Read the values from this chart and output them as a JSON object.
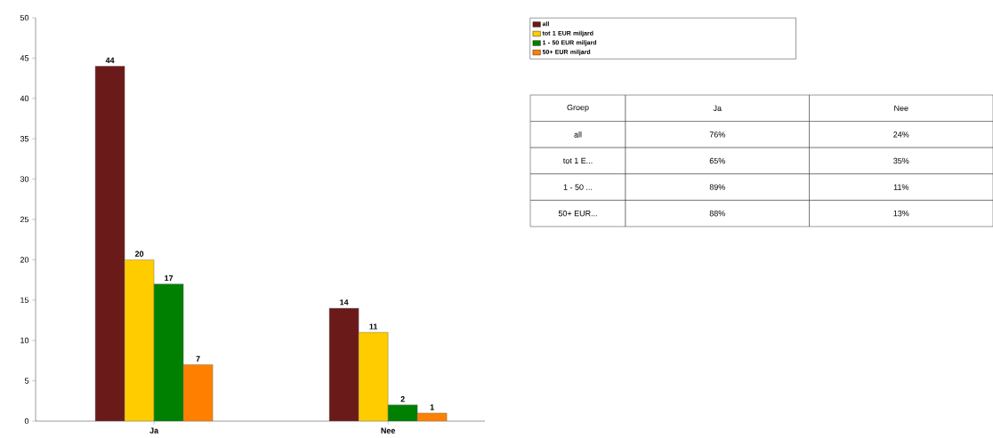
{
  "chart_data": [
    {
      "type": "bar",
      "categories": [
        "Ja",
        "Nee"
      ],
      "series": [
        {
          "name": "all",
          "color": "#6b1a1a",
          "values": [
            44,
            14
          ]
        },
        {
          "name": "tot 1 EUR miljard",
          "color": "#ffcc00",
          "values": [
            20,
            11
          ]
        },
        {
          "name": "1 - 50 EUR miljard",
          "color": "#008000",
          "values": [
            17,
            2
          ]
        },
        {
          "name": "50+ EUR miljard",
          "color": "#ff8000",
          "values": [
            7,
            1
          ]
        }
      ],
      "ylim": [
        0,
        50
      ],
      "yticks": [
        0,
        5,
        10,
        15,
        20,
        25,
        30,
        35,
        40,
        45,
        50
      ],
      "data_labels": true,
      "legend": "right",
      "grid": false
    },
    {
      "type": "other",
      "ylabel": "Groep",
      "categories": [
        "Ja",
        "Nee"
      ],
      "y_categories": [
        "all",
        "tot 1 E...",
        "1 - 50 ...",
        "50+ EUR..."
      ],
      "cell_labels": [
        [
          "76%",
          "24%"
        ],
        [
          "65%",
          "35%"
        ],
        [
          "89%",
          "11%"
        ],
        [
          "88%",
          "13%"
        ]
      ]
    }
  ]
}
